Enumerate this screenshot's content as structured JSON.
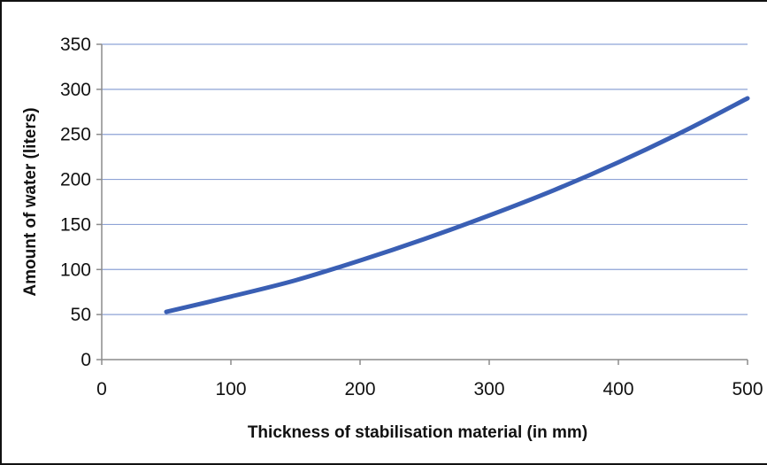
{
  "chart_data": {
    "type": "line",
    "title": "",
    "xlabel": "Thickness of stabilisation material (in mm)",
    "ylabel": "Amount of water (liters)",
    "xlim": [
      0,
      500
    ],
    "ylim": [
      0,
      350
    ],
    "x_ticks": [
      "0",
      "100",
      "200",
      "300",
      "400",
      "500"
    ],
    "y_ticks": [
      "0",
      "50",
      "100",
      "150",
      "200",
      "250",
      "300",
      "350"
    ],
    "grid": "horizontal",
    "legend": "none",
    "series": [
      {
        "color": "#3a5fb4",
        "x": [
          50,
          100,
          150,
          200,
          250,
          300,
          350,
          400,
          450,
          500
        ],
        "y": [
          53,
          70,
          88,
          110,
          134,
          160,
          188,
          219,
          253,
          290
        ]
      }
    ]
  }
}
